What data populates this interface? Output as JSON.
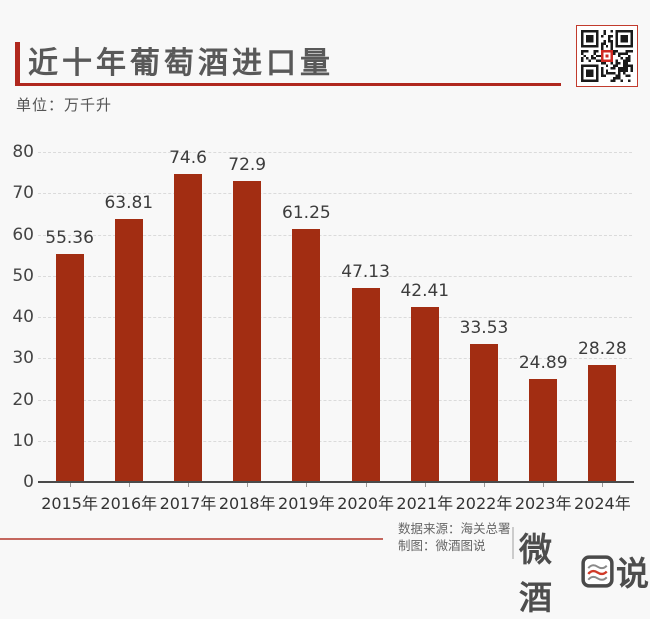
{
  "header": {
    "title": "近十年葡萄酒进口量",
    "unit_label": "单位：万千升",
    "accent_color": "#b0281e"
  },
  "qr": {
    "icon": "qr-code",
    "border_color": "#c23b2d",
    "center_color": "#cf2a23"
  },
  "chart_data": {
    "type": "bar",
    "title": "近十年葡萄酒进口量",
    "unit": "万千升",
    "categories": [
      "2015年",
      "2016年",
      "2017年",
      "2018年",
      "2019年",
      "2020年",
      "2021年",
      "2022年",
      "2023年",
      "2024年"
    ],
    "values": [
      55.36,
      63.81,
      74.6,
      72.9,
      61.25,
      47.13,
      42.41,
      33.53,
      24.89,
      28.28
    ],
    "value_labels": [
      "55.36",
      "63.81",
      "74.6",
      "72.9",
      "61.25",
      "47.13",
      "42.41",
      "33.53",
      "24.89",
      "28.28"
    ],
    "bar_color": "#a22d12",
    "ylim": [
      0,
      80
    ],
    "ytick_step": 10,
    "grid": true,
    "legend": "none",
    "xlabel": "",
    "ylabel": ""
  },
  "footer": {
    "source": "数据来源：海关总署",
    "credit": "制图：微酒图说",
    "logo_prefix": "微酒",
    "logo_boxed_char": "图",
    "logo_suffix": "说",
    "logo_wave_color": "#d03a28"
  }
}
